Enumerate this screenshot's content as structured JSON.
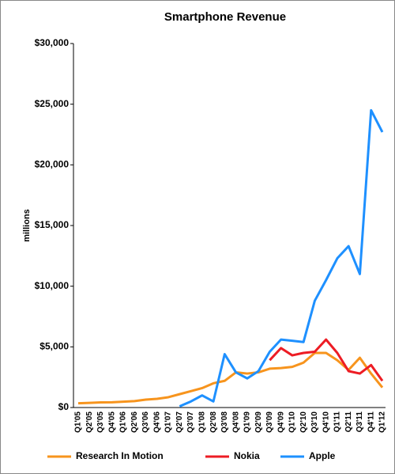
{
  "chart_data": {
    "type": "line",
    "title": "Smartphone Revenue",
    "y_label": "millions",
    "categories": [
      "Q1'05",
      "Q2'05",
      "Q3'05",
      "Q4'05",
      "Q1'06",
      "Q2'06",
      "Q3'06",
      "Q4'06",
      "Q1'07",
      "Q2'07",
      "Q3'07",
      "Q1'08",
      "Q2'08",
      "Q3'08",
      "Q4'08",
      "Q1'09",
      "Q2'09",
      "Q3'09",
      "Q4'09",
      "Q1'10",
      "Q2'10",
      "Q3'10",
      "Q4'10",
      "Q1'11",
      "Q2'11",
      "Q3'11",
      "Q4'11",
      "Q1'12"
    ],
    "series": [
      {
        "name": "Research In Motion",
        "color": "#f7941d",
        "values": [
          350,
          380,
          420,
          430,
          480,
          530,
          650,
          720,
          850,
          1100,
          1350,
          1600,
          2000,
          2200,
          2900,
          2800,
          2900,
          3200,
          3250,
          3350,
          3700,
          4500,
          4500,
          3900,
          3100,
          4100,
          2800,
          1650
        ]
      },
      {
        "name": "Nokia",
        "color": "#ed1c24",
        "values": [
          null,
          null,
          null,
          null,
          null,
          null,
          null,
          null,
          null,
          null,
          null,
          null,
          null,
          null,
          null,
          null,
          null,
          3900,
          4900,
          4300,
          4500,
          4600,
          5600,
          4500,
          3000,
          2800,
          3500,
          2200
        ]
      },
      {
        "name": "Apple",
        "color": "#1e90ff",
        "values": [
          null,
          null,
          null,
          null,
          null,
          null,
          null,
          null,
          null,
          100,
          500,
          1000,
          500,
          4400,
          2900,
          2400,
          3000,
          4600,
          5600,
          5500,
          5400,
          8800,
          10500,
          12300,
          13300,
          11000,
          24500,
          22700
        ]
      }
    ],
    "ylim": [
      0,
      30000
    ],
    "yticks": [
      {
        "value": 0,
        "label": "$0"
      },
      {
        "value": 5000,
        "label": "$5,000"
      },
      {
        "value": 10000,
        "label": "$10,000"
      },
      {
        "value": 15000,
        "label": "$15,000"
      },
      {
        "value": 20000,
        "label": "$20,000"
      },
      {
        "value": 25000,
        "label": "$25,000"
      },
      {
        "value": 30000,
        "label": "$30,000"
      }
    ],
    "legend": "bottom"
  }
}
